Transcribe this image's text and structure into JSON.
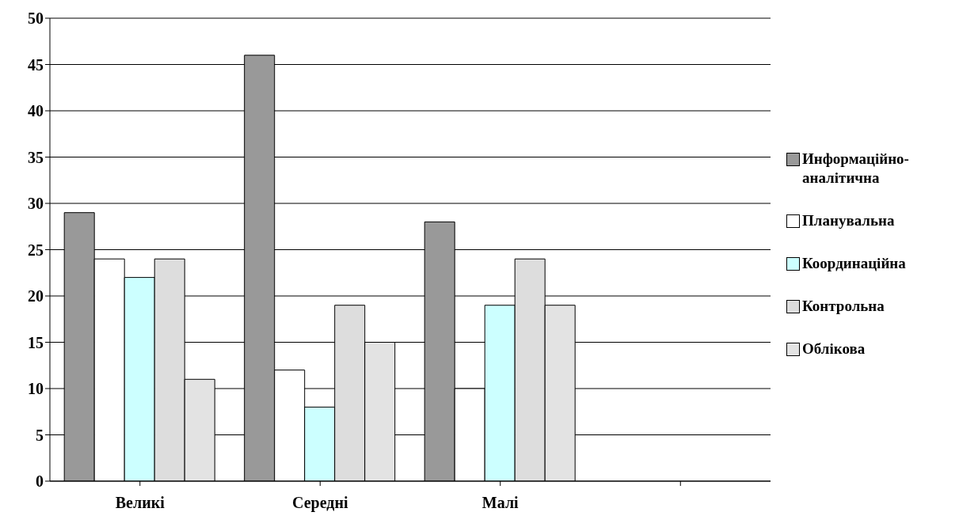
{
  "chart_data": {
    "type": "bar",
    "categories": [
      "Великі",
      "Середні",
      "Малі",
      null
    ],
    "series": [
      {
        "name": "Информаційно-аналітична",
        "color": "#999999",
        "values": [
          29,
          46,
          28,
          null
        ]
      },
      {
        "name": "Планувальна",
        "color": "#ffffff",
        "values": [
          24,
          12,
          10,
          null
        ]
      },
      {
        "name": "Координаційна",
        "color": "#ccffff",
        "values": [
          22,
          8,
          19,
          null
        ]
      },
      {
        "name": "Контрольна",
        "color": "#dddddd",
        "values": [
          24,
          19,
          24,
          null
        ]
      },
      {
        "name": "Облікова",
        "color": "#e3e3e3",
        "values": [
          11,
          15,
          19,
          null
        ]
      }
    ],
    "ylim": [
      0,
      50
    ],
    "yticks": [
      0,
      5,
      10,
      15,
      20,
      25,
      30,
      35,
      40,
      45,
      50
    ],
    "grid": "y",
    "legend": "right"
  }
}
